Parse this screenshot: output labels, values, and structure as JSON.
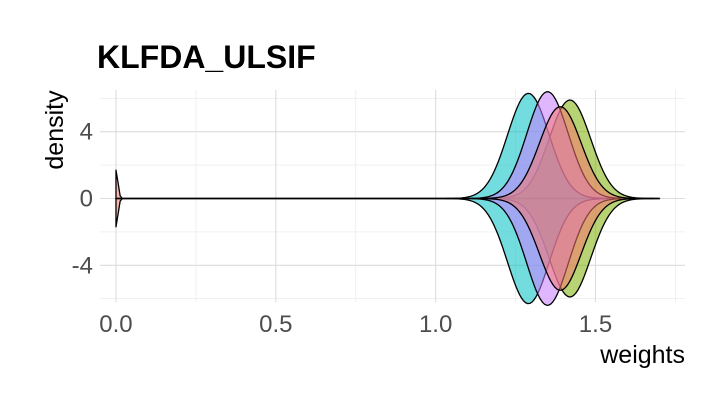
{
  "chart_data": {
    "type": "violin",
    "title": "KLFDA_ULSIF",
    "xlabel": "weights",
    "ylabel": "density",
    "xlim": [
      -0.05,
      1.78
    ],
    "ylim": [
      -6.2,
      6.5
    ],
    "xticks": [
      {
        "value": 0.0,
        "label": "0.0"
      },
      {
        "value": 0.5,
        "label": "0.5"
      },
      {
        "value": 1.0,
        "label": "1.0"
      },
      {
        "value": 1.5,
        "label": "1.5"
      }
    ],
    "yticks": [
      {
        "value": 4,
        "label": "4"
      },
      {
        "value": 0,
        "label": "0"
      },
      {
        "value": -4,
        "label": "-4"
      }
    ],
    "grid": true,
    "legend": "none",
    "series": [
      {
        "color": "#f8766d",
        "mode": 0.0,
        "peak": 1.7,
        "sigma": 0.006,
        "start": 0.0,
        "end": 1.7
      },
      {
        "color": "#7cae00",
        "mode": 1.42,
        "peak": 5.9,
        "sigma": 0.065,
        "start": 0.0,
        "end": 1.7
      },
      {
        "color": "#00bfc4",
        "mode": 1.29,
        "peak": 6.3,
        "sigma": 0.065,
        "start": 0.0,
        "end": 1.7
      },
      {
        "color": "#c77cff",
        "mode": 1.35,
        "peak": 6.4,
        "sigma": 0.065,
        "start": 0.0,
        "end": 1.7
      },
      {
        "color": "#f8766d",
        "mode": 1.39,
        "peak": 5.5,
        "sigma": 0.065,
        "start": 0.0,
        "end": 1.7
      }
    ]
  }
}
